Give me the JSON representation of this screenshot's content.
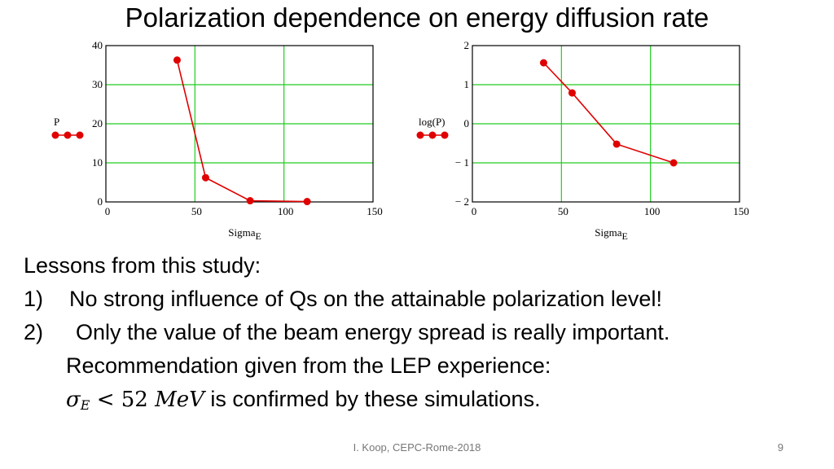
{
  "slide": {
    "title": "Polarization dependence on energy diffusion rate",
    "lessons": {
      "heading": "Lessons from this study:",
      "item1_num": "1)",
      "item1_text": "No strong influence of Qs on the attainable polarization level!",
      "item2_num": "2)",
      "item2_text": "Only the value of the beam energy spread is really important.",
      "line3": "Recommendation given from the LEP experience:",
      "line4_math_sigma": "σ",
      "line4_math_sub": "E",
      "line4_math_rel": " < 52 ",
      "line4_math_unit": "MeV",
      "line4_text": " is confirmed by these simulations."
    },
    "footer": "I. Koop, CEPC-Rome-2018",
    "page_number": "9"
  },
  "colors": {
    "grid": "#22cc22",
    "series": "#e00000",
    "frame": "#000000"
  },
  "chart_data": [
    {
      "type": "line",
      "title": "",
      "xlabel": "Sigma",
      "xlabel_sub": "E",
      "ylabel": "P",
      "xlim": [
        0,
        150
      ],
      "ylim": [
        0,
        40
      ],
      "x_ticks": [
        0,
        50,
        100,
        150
      ],
      "y_ticks": [
        0,
        10,
        20,
        30,
        40
      ],
      "x_tick_labels": [
        "0",
        "50",
        "100",
        "150"
      ],
      "y_tick_labels": [
        "0",
        "10",
        "20",
        "30",
        "40"
      ],
      "grid": true,
      "series": [
        {
          "x": [
            40,
            56,
            81,
            113
          ],
          "y": [
            36.3,
            6.2,
            0.3,
            0.1
          ]
        }
      ]
    },
    {
      "type": "line",
      "title": "",
      "xlabel": "Sigma",
      "xlabel_sub": "E",
      "ylabel": "log(P)",
      "xlim": [
        0,
        150
      ],
      "ylim": [
        -2,
        2
      ],
      "x_ticks": [
        0,
        50,
        100,
        150
      ],
      "y_ticks": [
        -2,
        -1,
        0,
        1,
        2
      ],
      "x_tick_labels": [
        "0",
        "50",
        "100",
        "150"
      ],
      "y_tick_labels": [
        "− 2",
        "− 1",
        "0",
        "1",
        "2"
      ],
      "grid": true,
      "series": [
        {
          "x": [
            40,
            56,
            81,
            113
          ],
          "y": [
            1.56,
            0.79,
            -0.52,
            -1.0
          ]
        }
      ]
    }
  ]
}
